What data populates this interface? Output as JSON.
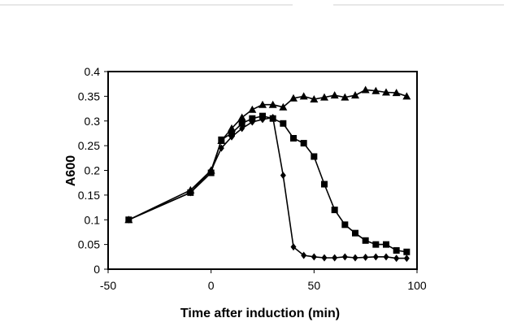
{
  "chart_data": {
    "type": "line",
    "title": "",
    "xlabel": "Time after induction (min)",
    "ylabel": "A600",
    "xlim": [
      -50,
      100
    ],
    "ylim": [
      0,
      0.4
    ],
    "xticks": [
      -50,
      0,
      50,
      100
    ],
    "yticks": [
      0,
      0.05,
      0.1,
      0.15,
      0.2,
      0.25,
      0.3,
      0.35,
      0.4
    ],
    "x_tick_labels": [
      "-50",
      "0",
      "50",
      "100"
    ],
    "y_tick_labels": [
      "0",
      "0.05",
      "0.1",
      "0.15",
      "0.2",
      "0.25",
      "0.3",
      "0.35",
      "0.4"
    ],
    "grid": false,
    "legend": "none",
    "series": [
      {
        "marker": "triangle",
        "x": [
          -40,
          -10,
          0,
          5,
          10,
          15,
          20,
          25,
          30,
          35,
          40,
          45,
          50,
          55,
          60,
          65,
          70,
          75,
          80,
          85,
          90,
          95
        ],
        "y": [
          0.1,
          0.16,
          0.2,
          0.26,
          0.285,
          0.307,
          0.323,
          0.333,
          0.333,
          0.328,
          0.346,
          0.35,
          0.344,
          0.348,
          0.352,
          0.348,
          0.352,
          0.363,
          0.361,
          0.358,
          0.357,
          0.35
        ]
      },
      {
        "marker": "square",
        "x": [
          -40,
          -10,
          0,
          5,
          10,
          15,
          20,
          25,
          30,
          35,
          40,
          45,
          50,
          55,
          60,
          65,
          70,
          75,
          80,
          85,
          90,
          95
        ],
        "y": [
          0.1,
          0.155,
          0.195,
          0.262,
          0.275,
          0.295,
          0.305,
          0.31,
          0.305,
          0.295,
          0.265,
          0.255,
          0.228,
          0.172,
          0.12,
          0.09,
          0.073,
          0.058,
          0.05,
          0.05,
          0.038,
          0.035
        ]
      },
      {
        "marker": "diamond",
        "x": [
          -40,
          -10,
          0,
          5,
          10,
          15,
          20,
          25,
          30,
          35,
          40,
          45,
          50,
          55,
          60,
          65,
          70,
          75,
          80,
          85,
          90,
          95
        ],
        "y": [
          0.1,
          0.155,
          0.2,
          0.245,
          0.268,
          0.285,
          0.298,
          0.303,
          0.307,
          0.19,
          0.045,
          0.028,
          0.025,
          0.023,
          0.023,
          0.025,
          0.023,
          0.024,
          0.025,
          0.025,
          0.022,
          0.022
        ]
      }
    ]
  }
}
